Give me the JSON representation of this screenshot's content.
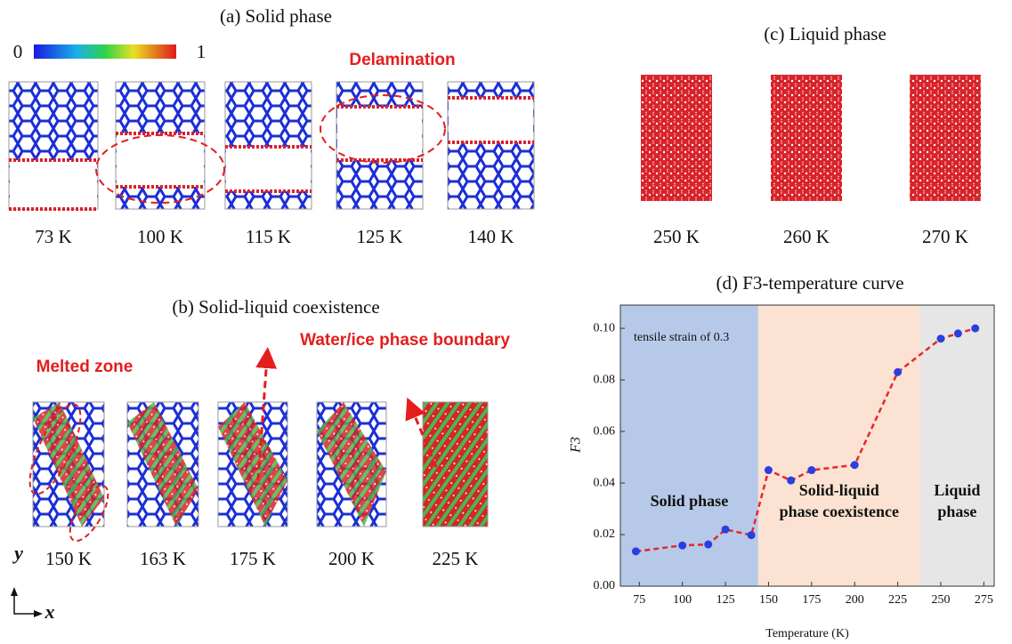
{
  "panel_a": {
    "title": "(a) Solid phase",
    "colorbar": {
      "min": 0,
      "max": 1
    },
    "annotation": "Delamination",
    "labels": [
      "73 K",
      "100 K",
      "115 K",
      "125 K",
      "140 K"
    ]
  },
  "panel_b": {
    "title": "(b) Solid-liquid coexistence",
    "annotations": [
      "Melted zone",
      "Water/ice phase boundary"
    ],
    "labels": [
      "150 K",
      "163 K",
      "175 K",
      "200 K",
      "225 K"
    ]
  },
  "panel_c": {
    "title": "(c) Liquid phase",
    "labels": [
      "250 K",
      "260 K",
      "270 K"
    ]
  },
  "axes_indicator": {
    "y": "y",
    "x": "x"
  },
  "chart_data": {
    "type": "line",
    "title": "(d) F3-temperature curve",
    "x_label": "Temperature (K)",
    "y_label": "F3",
    "annotation": "tensile strain of 0.3",
    "x": [
      73,
      100,
      115,
      125,
      140,
      150,
      163,
      175,
      200,
      225,
      250,
      260,
      270
    ],
    "values": [
      0.0135,
      0.0158,
      0.0162,
      0.022,
      0.0198,
      0.045,
      0.041,
      0.045,
      0.047,
      0.083,
      0.096,
      0.098,
      0.1
    ],
    "color": "#e8262b",
    "marker_color": "#2a3fe0",
    "line_style": "dashed",
    "xlim": [
      64,
      281
    ],
    "ylim": [
      0,
      0.109
    ],
    "xticks": [
      75,
      100,
      125,
      150,
      175,
      200,
      225,
      250,
      275
    ],
    "yticks": [
      {
        "value": 0,
        "label": "0.00"
      },
      {
        "value": 0.02,
        "label": "0.02"
      },
      {
        "value": 0.04,
        "label": "0.04"
      },
      {
        "value": 0.06,
        "label": "0.06"
      },
      {
        "value": 0.08,
        "label": "0.08"
      },
      {
        "value": 0.1,
        "label": "0.10"
      }
    ],
    "regions": [
      {
        "start": 64,
        "end": 144,
        "color": "#b7c9e8",
        "label": [
          "Solid phase"
        ]
      },
      {
        "start": 144,
        "end": 238,
        "color": "#fbe2d2",
        "label": [
          "Solid-liquid",
          "phase coexistence"
        ]
      },
      {
        "start": 238,
        "end": 281,
        "color": "#e6e6e6",
        "label": [
          "Liquid",
          "phase"
        ]
      }
    ]
  }
}
